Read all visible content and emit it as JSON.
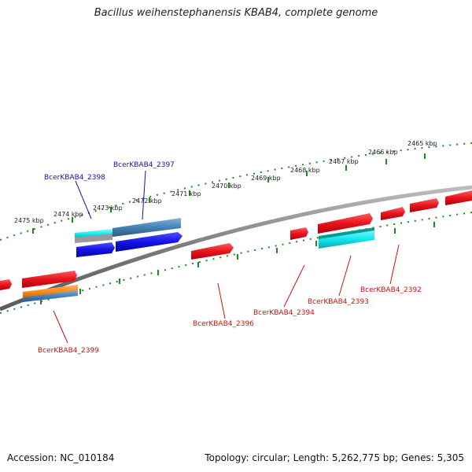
{
  "header": {
    "title": "Bacillus weihenstephanensis KBAB4, complete genome"
  },
  "footer": {
    "accession": "Accession: NC_010184",
    "stats": "Topology: circular; Length: 5,262,775 bp; Genes: 5,305"
  },
  "colors": {
    "backbone": "#8a8a8a",
    "tick": "#1f8a1f",
    "label_blue": "#1010bb",
    "label_red": "#cc1111",
    "gene_red": "#e8141e",
    "gene_blue": "#1414e6",
    "gene_steel": "#4682b4",
    "gene_cyan": "#14e8f0",
    "gene_orange": "#ff8c1a",
    "gene_gray": "#a0a0a0"
  },
  "ticks": [
    "2475 kbp",
    "2474 kbp",
    "2473 kbp",
    "2472 kbp",
    "2471 kbp",
    "2470 kbp",
    "2469 kbp",
    "2468 kbp",
    "2467 kbp",
    "2466 kbp",
    "2465 kbp"
  ],
  "gene_labels": {
    "g2398": "BcerKBAB4_2398",
    "g2397": "BcerKBAB4_2397",
    "g2399": "BcerKBAB4_2399",
    "g2396": "BcerKBAB4_2396",
    "g2394": "BcerKBAB4_2394",
    "g2393": "BcerKBAB4_2393",
    "g2392": "BcerKBAB4_2392"
  }
}
